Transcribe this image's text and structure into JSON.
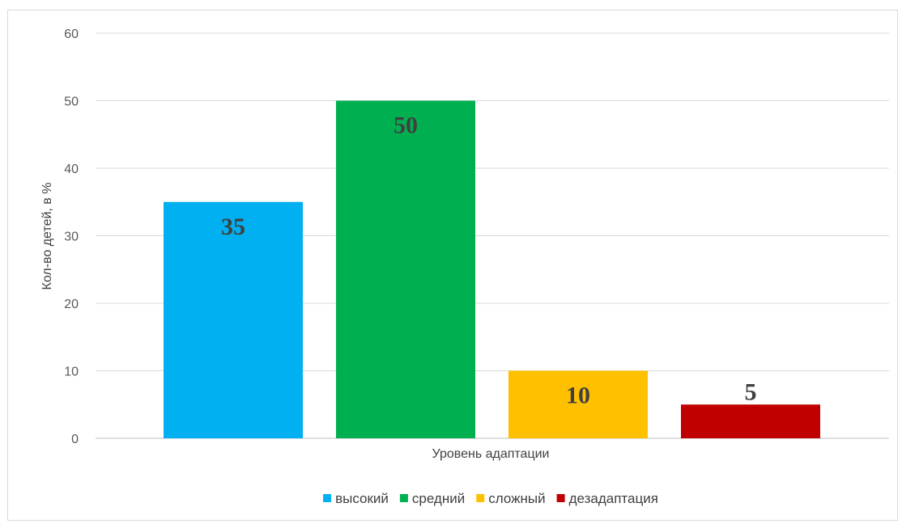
{
  "chart_data": {
    "type": "bar",
    "categories": [
      "Уровень адаптации"
    ],
    "series": [
      {
        "name": "высокий",
        "values": [
          35
        ],
        "color": "#00b0f0"
      },
      {
        "name": "средний",
        "values": [
          50
        ],
        "color": "#00b050"
      },
      {
        "name": "сложный",
        "values": [
          10
        ],
        "color": "#ffc000"
      },
      {
        "name": "дезадаптация",
        "values": [
          5
        ],
        "color": "#c00000"
      }
    ],
    "xlabel": "Уровень адаптации",
    "ylabel": "Кол-во детей, в %",
    "ylim": [
      0,
      60
    ],
    "yticks": [
      0,
      10,
      20,
      30,
      40,
      50,
      60
    ],
    "grid": true,
    "legend": "bottom",
    "data_labels": [
      "35",
      "50",
      "10",
      "5"
    ]
  }
}
